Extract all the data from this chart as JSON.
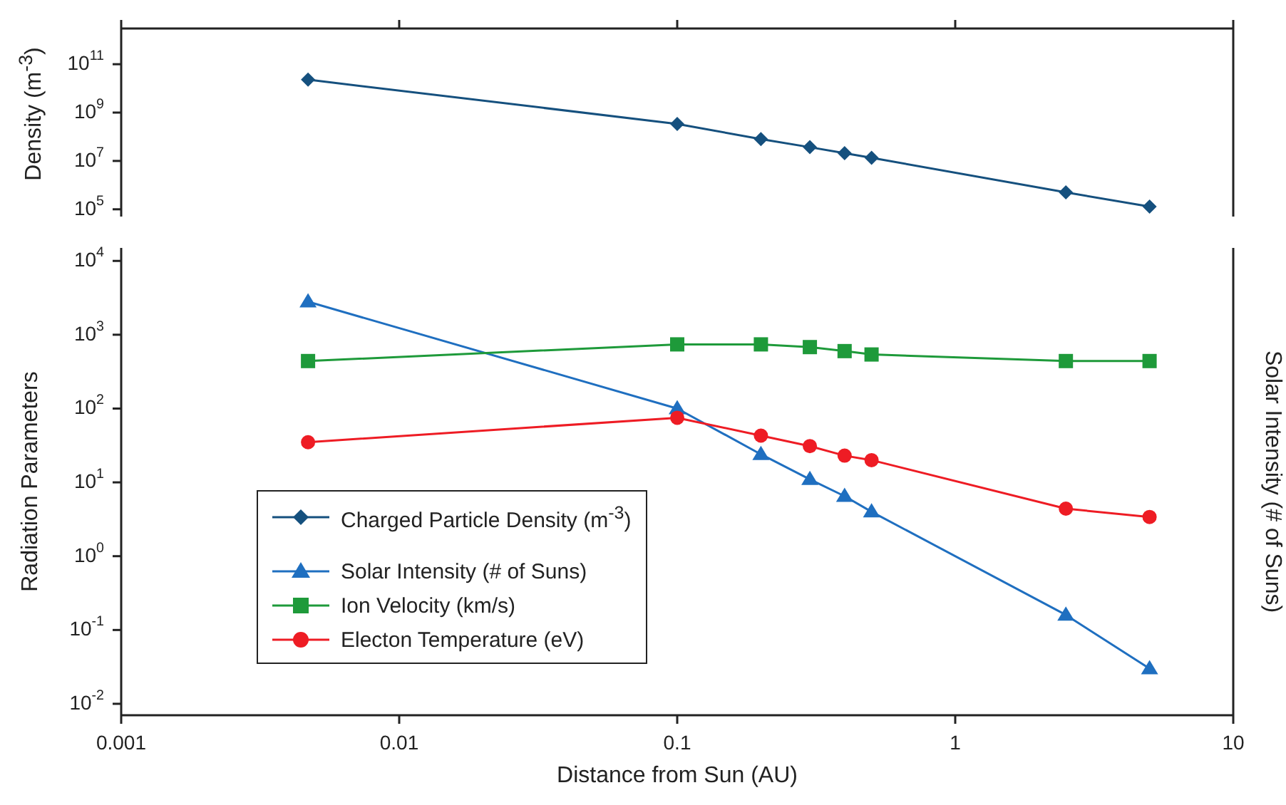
{
  "chart_data": [
    {
      "type": "line",
      "ylabel": "Density (m$^{-3}$)",
      "x": [
        0.0047,
        0.1,
        0.2,
        0.3,
        0.4,
        0.5,
        2.5,
        5
      ],
      "xlim": [
        0.001,
        10
      ],
      "xticks": [
        {
          "value": 0.001,
          "label": null
        },
        {
          "value": 0.01,
          "label": null
        },
        {
          "value": 0.1,
          "label": null
        },
        {
          "value": 1,
          "label": null
        },
        {
          "value": 10,
          "label": null
        }
      ],
      "ylim": [
        50000,
        3000000000000
      ],
      "yticks": [
        {
          "value": 100000,
          "label": "10$^{5}$"
        },
        {
          "value": 10000000,
          "label": "10$^{7}$"
        },
        {
          "value": 1000000000,
          "label": "10$^{9}$"
        },
        {
          "value": 100000000000,
          "label": "10$^{11}$"
        }
      ],
      "log": "xy",
      "tick_labels": "y",
      "line_style": "solid",
      "series": [
        {
          "name": "Charged Particle Density (m$^{-3}$)",
          "color": "#15507e",
          "marker": "diamond",
          "values": [
            23000000000,
            340000000,
            80000000,
            37000000,
            21000000,
            13500000,
            500000,
            130000
          ]
        }
      ]
    },
    {
      "type": "line",
      "xlabel": "Distance from Sun (AU)",
      "ylabel": "Radiation Parameters",
      "y2label": "Solar Intensity (# of Suns)",
      "x": [
        0.0047,
        0.1,
        0.2,
        0.3,
        0.4,
        0.5,
        2.5,
        5
      ],
      "xlim": [
        0.001,
        10
      ],
      "xticks": [
        0.001,
        0.01,
        0.1,
        1,
        10
      ],
      "ylim": [
        0.007,
        15000
      ],
      "yticks": [
        {
          "value": 0.01,
          "label": "10$^{-2}$"
        },
        {
          "value": 0.1,
          "label": "10$^{-1}$"
        },
        {
          "value": 1,
          "label": "10$^{0}$"
        },
        {
          "value": 10,
          "label": "10$^{1}$"
        },
        {
          "value": 100,
          "label": "10$^{2}$"
        },
        {
          "value": 1000,
          "label": "10$^{3}$"
        },
        {
          "value": 10000,
          "label": "10$^{4}$"
        }
      ],
      "log": "xy",
      "legend": "bottom left",
      "line_style": "solid",
      "series": [
        {
          "name": "Solar Intensity (# of Suns)",
          "color": "#1f6fc0",
          "marker": "triangle",
          "values": [
            2800,
            100,
            24,
            11,
            6.5,
            4,
            0.16,
            0.03
          ]
        },
        {
          "name": "Ion Velocity (km/s)",
          "color": "#1e9a3a",
          "marker": "square",
          "values": [
            440,
            740,
            740,
            680,
            600,
            540,
            440,
            440
          ]
        },
        {
          "name": "Electon Temperature (eV)",
          "color": "#ee1c24",
          "marker": "circle",
          "values": [
            35,
            75,
            43,
            31,
            23,
            20,
            4.4,
            3.4
          ]
        }
      ]
    }
  ]
}
